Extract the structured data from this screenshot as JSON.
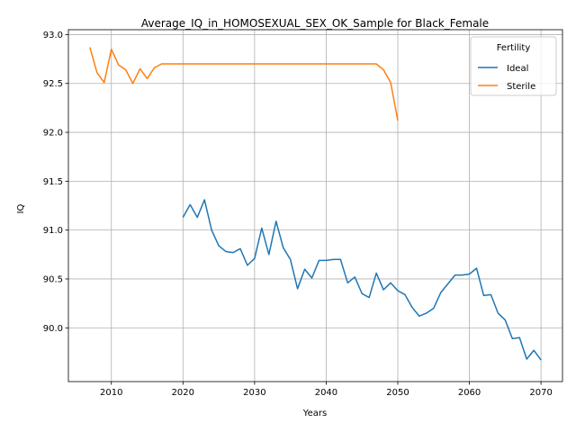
{
  "chart_data": {
    "type": "line",
    "title": "Average_IQ_in_HOMOSEXUAL_SEX_OK_Sample for Black_Female",
    "xlabel": "Years",
    "ylabel": "IQ",
    "xlim": [
      2004,
      2073
    ],
    "ylim": [
      89.45,
      93.05
    ],
    "xticks": [
      2010,
      2020,
      2030,
      2040,
      2050,
      2060,
      2070
    ],
    "yticks": [
      90.0,
      90.5,
      91.0,
      91.5,
      92.0,
      92.5,
      93.0
    ],
    "grid": true,
    "legend": {
      "title": "Fertility",
      "position": "top-right"
    },
    "series": [
      {
        "name": "Ideal",
        "color": "#1f77b4",
        "x": [
          2020,
          2021,
          2022,
          2023,
          2024,
          2025,
          2026,
          2027,
          2028,
          2029,
          2030,
          2031,
          2032,
          2033,
          2034,
          2035,
          2036,
          2037,
          2038,
          2039,
          2040,
          2041,
          2042,
          2043,
          2044,
          2045,
          2046,
          2047,
          2048,
          2049,
          2050,
          2051,
          2052,
          2053,
          2054,
          2055,
          2056,
          2057,
          2058,
          2059,
          2060,
          2061,
          2062,
          2063,
          2064,
          2065,
          2066,
          2067,
          2068,
          2069,
          2070
        ],
        "y": [
          91.13,
          91.26,
          91.13,
          91.31,
          91.0,
          90.84,
          90.78,
          90.77,
          90.81,
          90.64,
          90.71,
          91.02,
          90.75,
          91.09,
          90.82,
          90.7,
          90.4,
          90.6,
          90.51,
          90.69,
          90.69,
          90.7,
          90.7,
          90.46,
          90.52,
          90.35,
          90.31,
          90.56,
          90.39,
          90.46,
          90.38,
          90.34,
          90.21,
          90.12,
          90.15,
          90.2,
          90.36,
          90.45,
          90.54,
          90.54,
          90.55,
          90.61,
          90.33,
          90.34,
          90.15,
          90.08,
          89.89,
          89.9,
          89.68,
          89.77,
          89.67
        ]
      },
      {
        "name": "Sterile",
        "color": "#ff7f0e",
        "x": [
          2007,
          2008,
          2009,
          2010,
          2011,
          2012,
          2013,
          2014,
          2015,
          2016,
          2017,
          2018,
          2019,
          2020,
          2021,
          2022,
          2023,
          2024,
          2025,
          2026,
          2027,
          2028,
          2029,
          2030,
          2031,
          2032,
          2033,
          2034,
          2035,
          2036,
          2037,
          2038,
          2039,
          2040,
          2041,
          2042,
          2043,
          2044,
          2045,
          2046,
          2047,
          2048,
          2049,
          2050
        ],
        "y": [
          92.87,
          92.61,
          92.51,
          92.85,
          92.69,
          92.64,
          92.5,
          92.65,
          92.55,
          92.66,
          92.7,
          92.7,
          92.7,
          92.7,
          92.7,
          92.7,
          92.7,
          92.7,
          92.7,
          92.7,
          92.7,
          92.7,
          92.7,
          92.7,
          92.7,
          92.7,
          92.7,
          92.7,
          92.7,
          92.7,
          92.7,
          92.7,
          92.7,
          92.7,
          92.7,
          92.7,
          92.7,
          92.7,
          92.7,
          92.7,
          92.7,
          92.64,
          92.51,
          92.12
        ]
      }
    ]
  }
}
